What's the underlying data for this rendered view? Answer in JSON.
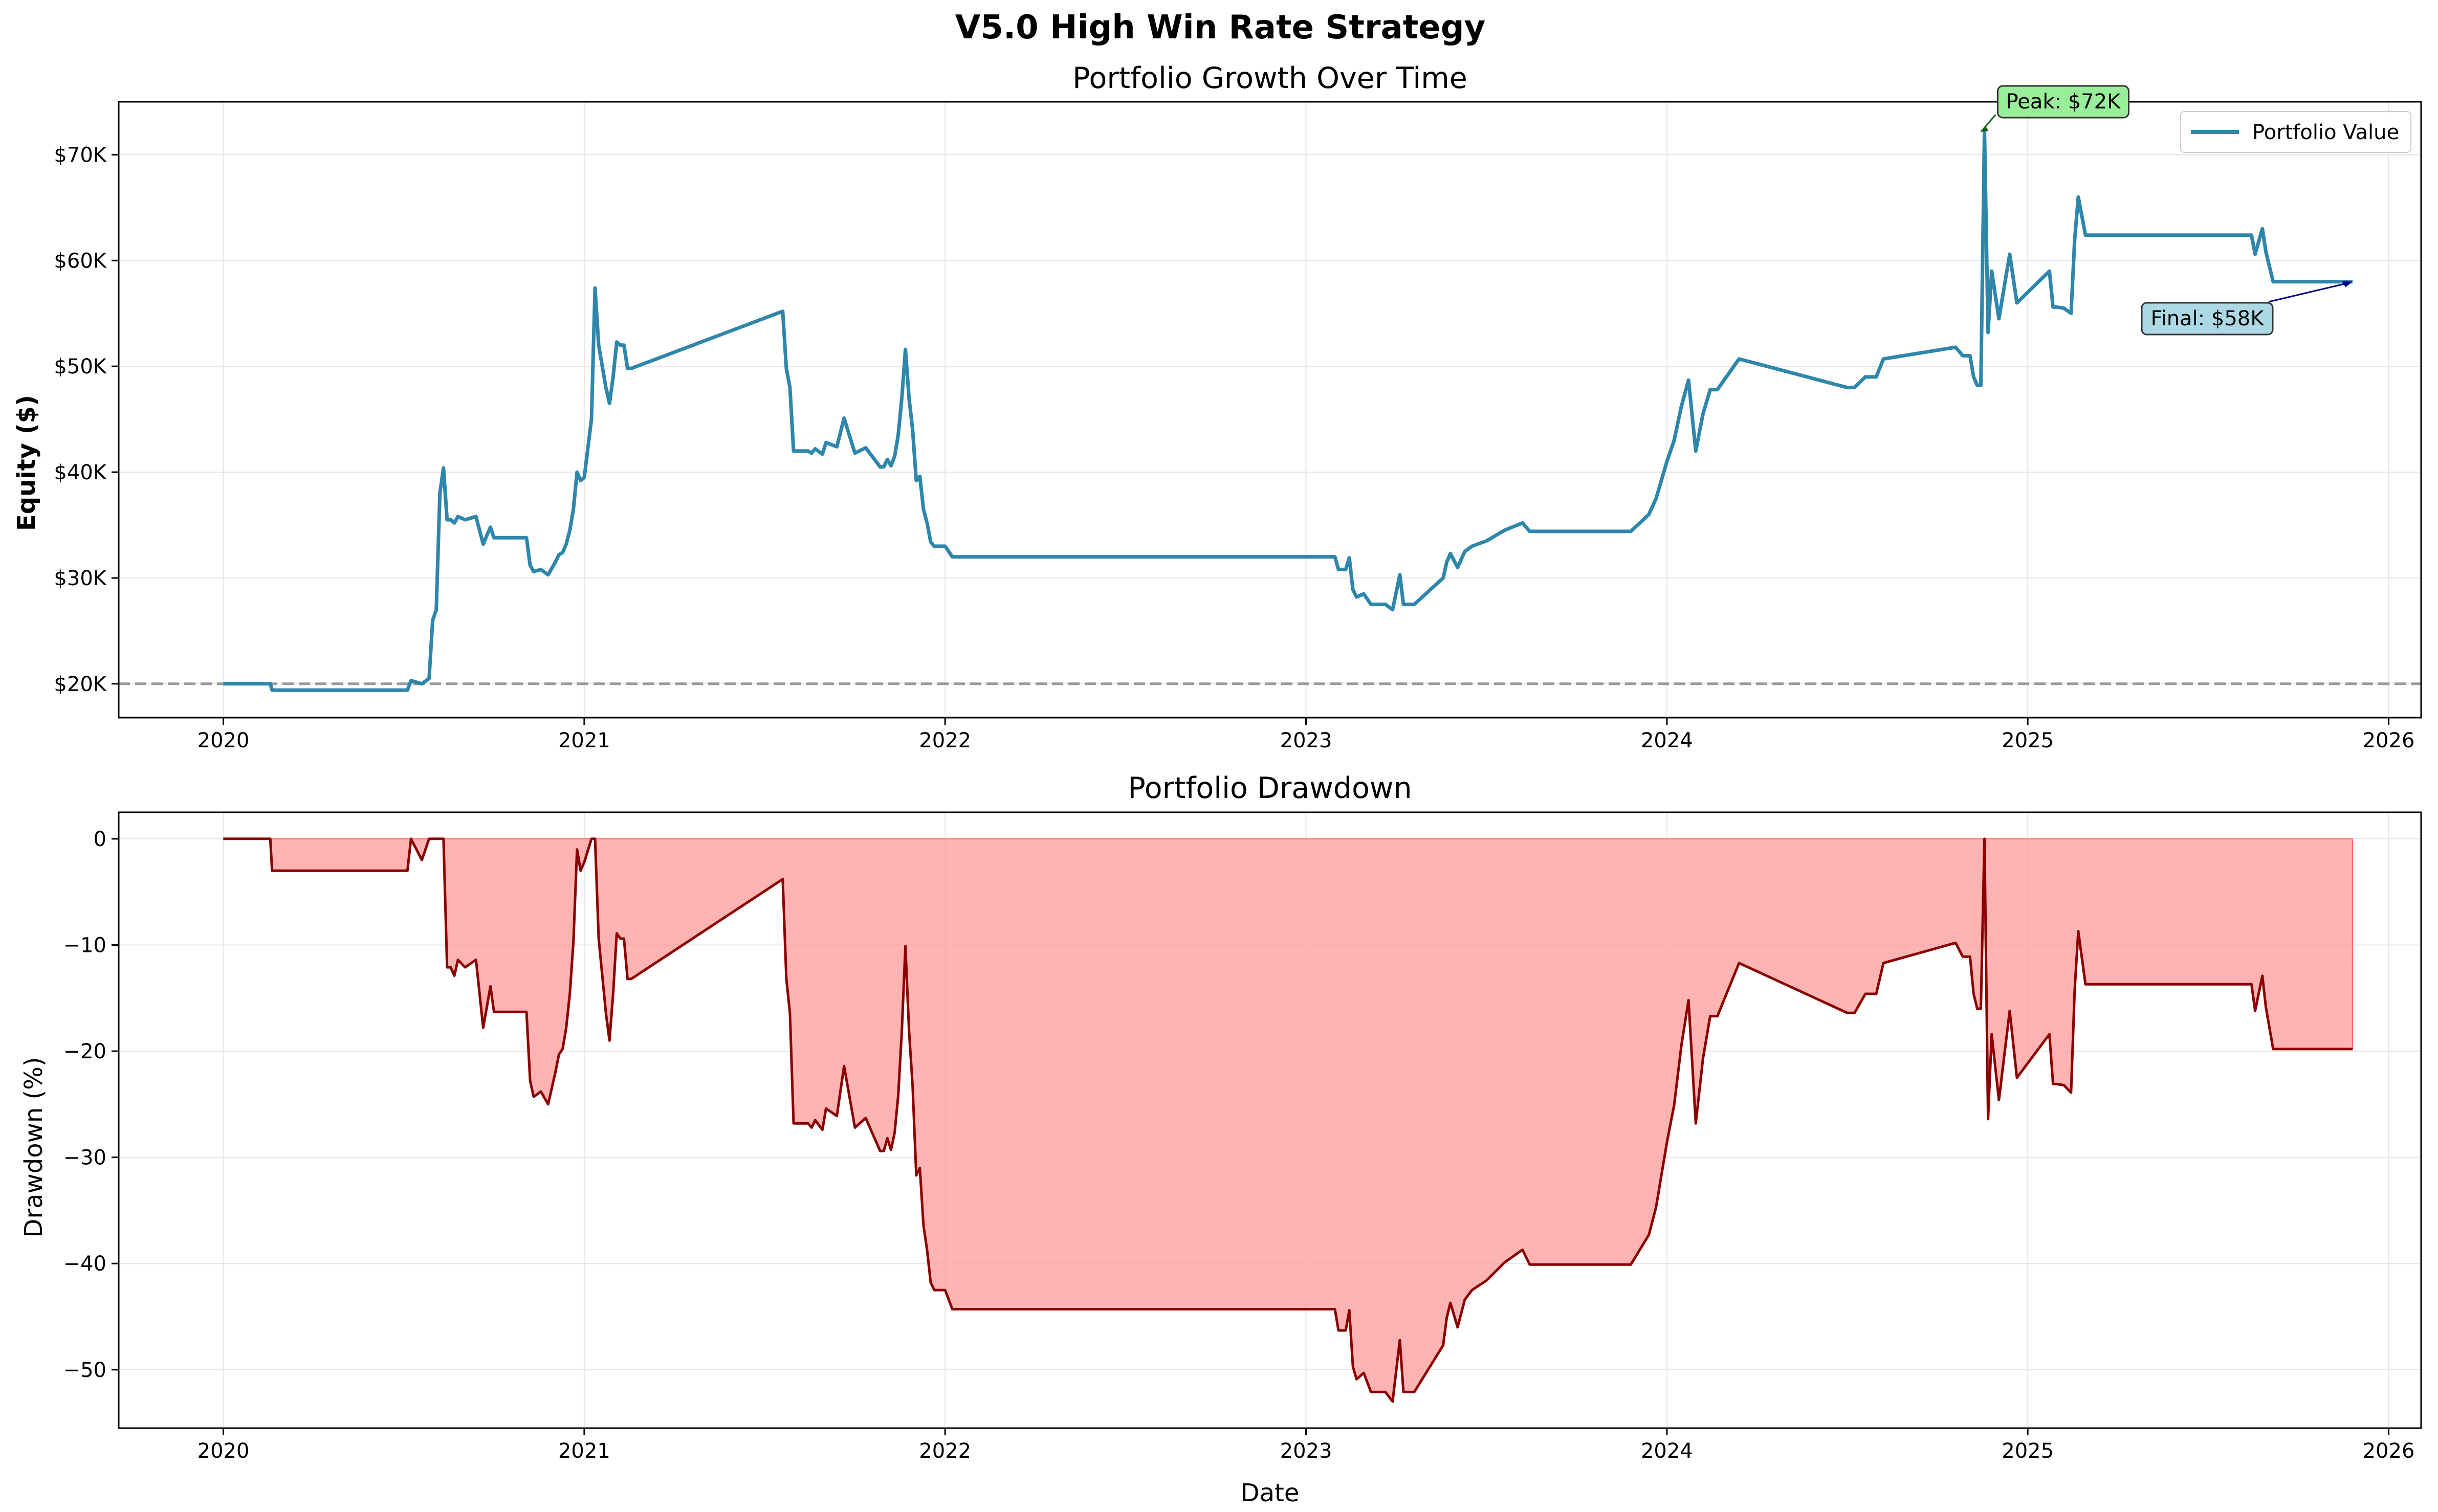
{
  "figure": {
    "suptitle": "V5.0 High Win Rate Strategy"
  },
  "colors": {
    "equity_line": "#2e86ab",
    "drawdown_line": "#8b0000",
    "drawdown_fill": "#ff9999",
    "baseline": "#999999",
    "peak_box": "#99ee99",
    "final_box": "#add8e6",
    "grid": "#e5e5e5"
  },
  "chart_data": [
    {
      "type": "line",
      "title": "Portfolio Growth Over Time",
      "xlabel": "",
      "ylabel": "Equity ($)",
      "x_ticks": [
        "2020",
        "2021",
        "2022",
        "2023",
        "2024",
        "2025",
        "2026"
      ],
      "y_ticks": [
        "$20K",
        "$30K",
        "$40K",
        "$50K",
        "$60K",
        "$70K"
      ],
      "xlim": [
        2019.71,
        2026.09
      ],
      "ylim": [
        16800,
        75000
      ],
      "grid": true,
      "legend_position": "upper right",
      "series": [
        {
          "name": "Portfolio Value",
          "x": [
            2020.0,
            2020.13,
            2020.135,
            2020.51,
            2020.52,
            2020.55,
            2020.57,
            2020.58,
            2020.59,
            2020.6,
            2020.61,
            2020.62,
            2020.63,
            2020.64,
            2020.65,
            2020.67,
            2020.7,
            2020.72,
            2020.74,
            2020.75,
            2020.78,
            2020.84,
            2020.85,
            2020.86,
            2020.88,
            2020.9,
            2020.92,
            2020.93,
            2020.94,
            2020.95,
            2020.96,
            2020.97,
            2020.98,
            2020.99,
            2021.0,
            2021.02,
            2021.03,
            2021.04,
            2021.06,
            2021.07,
            2021.08,
            2021.09,
            2021.1,
            2021.11,
            2021.12,
            2021.13,
            2021.55,
            2021.56,
            2021.57,
            2021.58,
            2021.6,
            2021.62,
            2021.63,
            2021.64,
            2021.66,
            2021.67,
            2021.7,
            2021.72,
            2021.75,
            2021.78,
            2021.82,
            2021.83,
            2021.84,
            2021.85,
            2021.86,
            2021.87,
            2021.88,
            2021.89,
            2021.9,
            2021.91,
            2021.92,
            2021.93,
            2021.94,
            2021.95,
            2021.96,
            2021.97,
            2021.99,
            2022.0,
            2022.02,
            2023.08,
            2023.09,
            2023.11,
            2023.12,
            2023.13,
            2023.14,
            2023.16,
            2023.18,
            2023.2,
            2023.22,
            2023.24,
            2023.26,
            2023.27,
            2023.28,
            2023.3,
            2023.38,
            2023.39,
            2023.4,
            2023.42,
            2023.44,
            2023.46,
            2023.5,
            2023.55,
            2023.6,
            2023.62,
            2023.65,
            2023.9,
            2023.95,
            2023.97,
            2024.0,
            2024.02,
            2024.04,
            2024.06,
            2024.08,
            2024.1,
            2024.12,
            2024.14,
            2024.2,
            2024.5,
            2024.52,
            2024.55,
            2024.58,
            2024.6,
            2024.8,
            2024.82,
            2024.84,
            2024.85,
            2024.86,
            2024.87,
            2024.88,
            2024.89,
            2024.9,
            2024.92,
            2024.95,
            2024.97,
            2025.06,
            2025.07,
            2025.08,
            2025.1,
            2025.12,
            2025.13,
            2025.14,
            2025.16,
            2025.2,
            2025.55,
            2025.6,
            2025.62,
            2025.63,
            2025.65,
            2025.66,
            2025.68,
            2025.7,
            2025.9
          ],
          "y": [
            20000,
            20000,
            19400,
            19400,
            20300,
            20000,
            20500,
            26000,
            27000,
            38000,
            40400,
            35500,
            35500,
            35200,
            35800,
            35500,
            35800,
            33200,
            34800,
            33800,
            33800,
            33800,
            31200,
            30600,
            30800,
            30300,
            31500,
            32200,
            32400,
            33200,
            34500,
            36500,
            40000,
            39200,
            39500,
            45000,
            57400,
            52000,
            48000,
            46500,
            49000,
            52300,
            52000,
            52000,
            49800,
            49800,
            55200,
            49800,
            48000,
            42000,
            42000,
            42000,
            41800,
            42200,
            41700,
            42800,
            42400,
            45100,
            41800,
            42300,
            40500,
            40500,
            41200,
            40600,
            41500,
            43500,
            47000,
            51600,
            47000,
            44000,
            39200,
            39600,
            36500,
            35200,
            33400,
            33000,
            33000,
            33000,
            32000,
            32000,
            30800,
            30800,
            31900,
            28900,
            28200,
            28500,
            27500,
            27500,
            27500,
            27000,
            30300,
            27500,
            27500,
            27500,
            30000,
            31500,
            32300,
            31000,
            32500,
            33000,
            33500,
            34500,
            35200,
            34400,
            34400,
            34400,
            36000,
            37500,
            41000,
            43000,
            46200,
            48700,
            42000,
            45500,
            47800,
            47800,
            50700,
            48000,
            48000,
            49000,
            49000,
            50700,
            51800,
            51000,
            51000,
            49000,
            48200,
            48200,
            72300,
            53200,
            59000,
            54500,
            60600,
            56000,
            59000,
            55600,
            55600,
            55500,
            55000,
            62000,
            66000,
            62400,
            62400,
            62400,
            62400,
            62400,
            60600,
            63000,
            60800,
            58000,
            58000,
            58000
          ]
        }
      ],
      "reference_line": {
        "y": 20000,
        "style": "dashed"
      },
      "annotations": [
        {
          "label": "Peak: $72K",
          "x": 2024.86,
          "y": 72300
        },
        {
          "label": "Final: $58K",
          "x": 2025.9,
          "y": 58000
        }
      ]
    },
    {
      "type": "area",
      "title": "Portfolio Drawdown",
      "xlabel": "Date",
      "ylabel": "Drawdown (%)",
      "x_ticks": [
        "2020",
        "2021",
        "2022",
        "2023",
        "2024",
        "2025",
        "2026"
      ],
      "y_ticks": [
        "0",
        "−10",
        "−20",
        "−30",
        "−40",
        "−50"
      ],
      "xlim": [
        2019.71,
        2026.09
      ],
      "ylim": [
        -55.5,
        2.5
      ],
      "grid": true,
      "series": [
        {
          "x": [
            2020.0,
            2020.13,
            2020.135,
            2020.51,
            2020.52,
            2020.55,
            2020.57,
            2020.58,
            2020.59,
            2020.6,
            2020.61,
            2020.62,
            2020.63,
            2020.64,
            2020.65,
            2020.67,
            2020.7,
            2020.72,
            2020.74,
            2020.75,
            2020.78,
            2020.84,
            2020.85,
            2020.86,
            2020.88,
            2020.9,
            2020.92,
            2020.93,
            2020.94,
            2020.95,
            2020.96,
            2020.97,
            2020.98,
            2020.99,
            2021.0,
            2021.02,
            2021.03,
            2021.04,
            2021.06,
            2021.07,
            2021.08,
            2021.09,
            2021.1,
            2021.11,
            2021.12,
            2021.13,
            2021.55,
            2021.56,
            2021.57,
            2021.58,
            2021.6,
            2021.62,
            2021.63,
            2021.64,
            2021.66,
            2021.67,
            2021.7,
            2021.72,
            2021.75,
            2021.78,
            2021.82,
            2021.83,
            2021.84,
            2021.85,
            2021.86,
            2021.87,
            2021.88,
            2021.89,
            2021.9,
            2021.91,
            2021.92,
            2021.93,
            2021.94,
            2021.95,
            2021.96,
            2021.97,
            2021.99,
            2022.0,
            2022.02,
            2023.08,
            2023.09,
            2023.11,
            2023.12,
            2023.13,
            2023.14,
            2023.16,
            2023.18,
            2023.2,
            2023.22,
            2023.24,
            2023.26,
            2023.27,
            2023.28,
            2023.3,
            2023.38,
            2023.39,
            2023.4,
            2023.42,
            2023.44,
            2023.46,
            2023.5,
            2023.55,
            2023.6,
            2023.62,
            2023.65,
            2023.9,
            2023.95,
            2023.97,
            2024.0,
            2024.02,
            2024.04,
            2024.06,
            2024.08,
            2024.1,
            2024.12,
            2024.14,
            2024.2,
            2024.5,
            2024.52,
            2024.55,
            2024.58,
            2024.6,
            2024.8,
            2024.82,
            2024.84,
            2024.85,
            2024.86,
            2024.87,
            2024.88,
            2024.89,
            2024.9,
            2024.92,
            2024.95,
            2024.97,
            2025.06,
            2025.07,
            2025.08,
            2025.1,
            2025.12,
            2025.13,
            2025.14,
            2025.16,
            2025.2,
            2025.55,
            2025.6,
            2025.62,
            2025.63,
            2025.65,
            2025.66,
            2025.68,
            2025.7,
            2025.9
          ],
          "y": [
            0,
            0,
            -3,
            -3,
            0,
            -2,
            0,
            0,
            0,
            0,
            0,
            -12.1,
            -12.1,
            -12.9,
            -11.4,
            -12.1,
            -11.4,
            -17.8,
            -13.9,
            -16.3,
            -16.3,
            -16.3,
            -22.8,
            -24.3,
            -23.8,
            -25,
            -22,
            -20.3,
            -19.8,
            -17.8,
            -14.6,
            -9.7,
            -1,
            -3,
            -2.2,
            0,
            0,
            -9.4,
            -16.4,
            -19,
            -14.6,
            -8.9,
            -9.4,
            -9.4,
            -13.2,
            -13.2,
            -3.8,
            -13.2,
            -16.4,
            -26.8,
            -26.8,
            -26.8,
            -27.2,
            -26.5,
            -27.4,
            -25.4,
            -26.1,
            -21.4,
            -27.2,
            -26.3,
            -29.4,
            -29.4,
            -28.2,
            -29.3,
            -27.7,
            -24.2,
            -18.1,
            -10.1,
            -18.1,
            -23.3,
            -31.7,
            -31,
            -36.4,
            -38.7,
            -41.8,
            -42.5,
            -42.5,
            -42.5,
            -44.3,
            -44.3,
            -46.3,
            -46.3,
            -44.4,
            -49.7,
            -50.9,
            -50.3,
            -52.1,
            -52.1,
            -52.1,
            -53,
            -47.2,
            -52.1,
            -52.1,
            -52.1,
            -47.7,
            -45.1,
            -43.7,
            -46,
            -43.4,
            -42.5,
            -41.6,
            -39.9,
            -38.7,
            -40.1,
            -40.1,
            -40.1,
            -37.3,
            -34.7,
            -28.6,
            -25.1,
            -19.5,
            -15.2,
            -26.8,
            -20.7,
            -16.7,
            -16.7,
            -11.7,
            -16.4,
            -16.4,
            -14.6,
            -14.6,
            -11.7,
            -9.8,
            -11.1,
            -11.1,
            -14.6,
            -16,
            -16,
            0,
            -26.4,
            -18.4,
            -24.6,
            -16.2,
            -22.5,
            -18.4,
            -23.1,
            -23.1,
            -23.2,
            -23.9,
            -14.2,
            -8.7,
            -13.7,
            -13.7,
            -13.7,
            -13.7,
            -13.7,
            -16.2,
            -12.9,
            -15.9,
            -19.8,
            -19.8,
            -19.8
          ]
        }
      ]
    }
  ]
}
